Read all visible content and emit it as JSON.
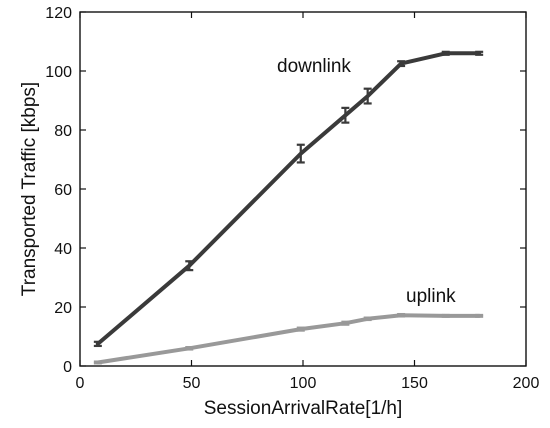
{
  "chart_data": {
    "type": "line",
    "title": "",
    "xlabel": "SessionArrivalRate[1/h]",
    "ylabel": "Transported Traffic [kbps]",
    "xlim": [
      0,
      200
    ],
    "ylim": [
      0,
      120
    ],
    "xticks": [
      "0",
      "50",
      "100",
      "150",
      "200"
    ],
    "yticks": [
      "0",
      "20",
      "40",
      "60",
      "80",
      "100",
      "120"
    ],
    "grid": false,
    "legend": "none",
    "series": [
      {
        "name": "downlink",
        "color": "#3a3a3a",
        "x": [
          8,
          49,
          99,
          119,
          129,
          144,
          164,
          179
        ],
        "y": [
          7.5,
          34,
          72,
          85,
          91.5,
          102.5,
          106,
          106
        ],
        "err": [
          0.7,
          1.5,
          3,
          2.5,
          2.5,
          0.8,
          0.5,
          0.5
        ]
      },
      {
        "name": "uplink",
        "color": "#999999",
        "x": [
          8,
          49,
          99,
          119,
          129,
          144,
          164,
          179
        ],
        "y": [
          1.2,
          6,
          12.5,
          14.5,
          16,
          17.2,
          17,
          17
        ],
        "err": [
          0.3,
          0.4,
          0.5,
          0.5,
          0.4,
          0.4,
          0.3,
          0.3
        ]
      }
    ]
  }
}
